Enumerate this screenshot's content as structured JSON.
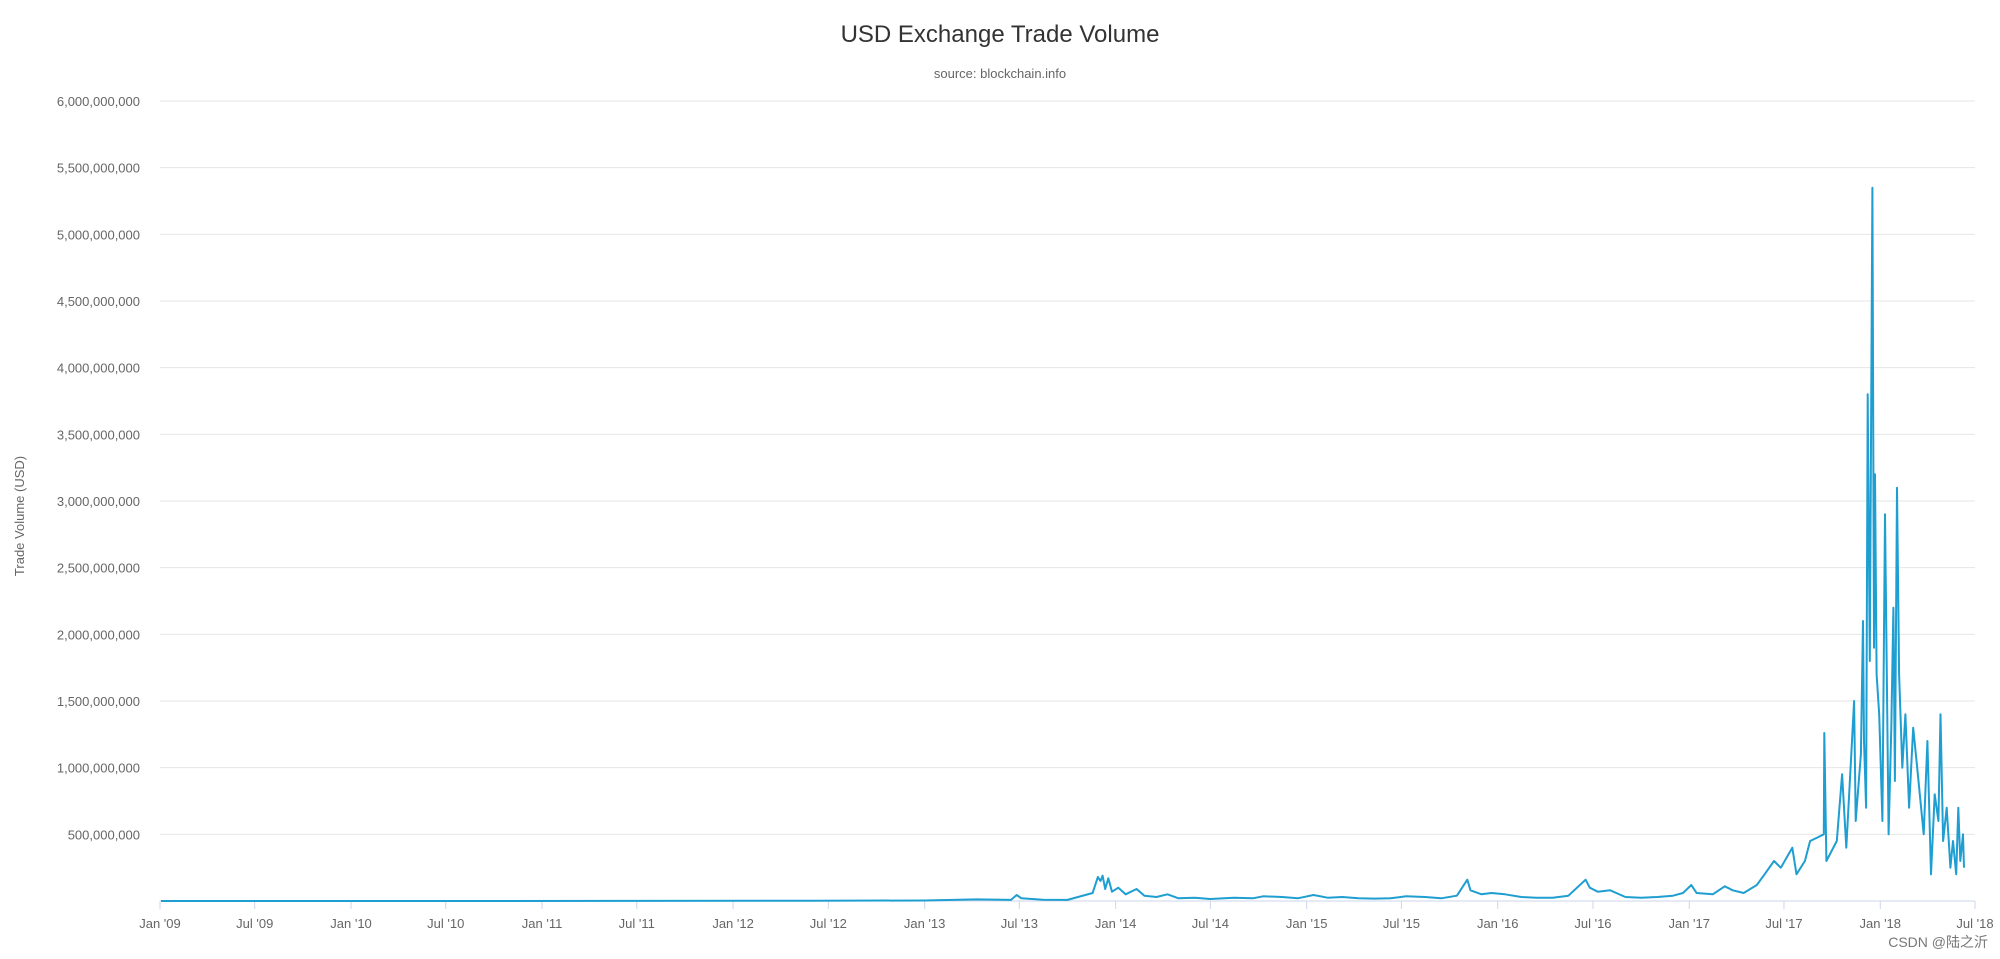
{
  "chart_data": {
    "type": "line",
    "title": "USD Exchange Trade Volume",
    "subtitle": "source: blockchain.info",
    "ylabel": "Trade Volume (USD)",
    "xlabel": "",
    "ylim": [
      0,
      6000000000
    ],
    "yticks": [
      {
        "value": 500000000,
        "label": "500,000,000"
      },
      {
        "value": 1000000000,
        "label": "1,000,000,000"
      },
      {
        "value": 1500000000,
        "label": "1,500,000,000"
      },
      {
        "value": 2000000000,
        "label": "2,000,000,000"
      },
      {
        "value": 2500000000,
        "label": "2,500,000,000"
      },
      {
        "value": 3000000000,
        "label": "3,000,000,000"
      },
      {
        "value": 3500000000,
        "label": "3,500,000,000"
      },
      {
        "value": 4000000000,
        "label": "4,000,000,000"
      },
      {
        "value": 4500000000,
        "label": "4,500,000,000"
      },
      {
        "value": 5000000000,
        "label": "5,000,000,000"
      },
      {
        "value": 5500000000,
        "label": "5,500,000,000"
      },
      {
        "value": 6000000000,
        "label": "6,000,000,000"
      }
    ],
    "xlim": [
      "2009-01-01",
      "2018-07-01"
    ],
    "xticks": [
      {
        "date": "2009-01-01",
        "label": "Jan '09"
      },
      {
        "date": "2009-07-01",
        "label": "Jul '09"
      },
      {
        "date": "2010-01-01",
        "label": "Jan '10"
      },
      {
        "date": "2010-07-01",
        "label": "Jul '10"
      },
      {
        "date": "2011-01-01",
        "label": "Jan '11"
      },
      {
        "date": "2011-07-01",
        "label": "Jul '11"
      },
      {
        "date": "2012-01-01",
        "label": "Jan '12"
      },
      {
        "date": "2012-07-01",
        "label": "Jul '12"
      },
      {
        "date": "2013-01-01",
        "label": "Jan '13"
      },
      {
        "date": "2013-07-01",
        "label": "Jul '13"
      },
      {
        "date": "2014-01-01",
        "label": "Jan '14"
      },
      {
        "date": "2014-07-01",
        "label": "Jul '14"
      },
      {
        "date": "2015-01-01",
        "label": "Jan '15"
      },
      {
        "date": "2015-07-01",
        "label": "Jul '15"
      },
      {
        "date": "2016-01-01",
        "label": "Jan '16"
      },
      {
        "date": "2016-07-01",
        "label": "Jul '16"
      },
      {
        "date": "2017-01-01",
        "label": "Jan '17"
      },
      {
        "date": "2017-07-01",
        "label": "Jul '17"
      },
      {
        "date": "2018-01-01",
        "label": "Jan '18"
      },
      {
        "date": "2018-07-01",
        "label": "Jul '18"
      }
    ],
    "grid": true,
    "legend": "none",
    "series": [
      {
        "color": "#1f9ed1",
        "points": [
          [
            "2009-01-03",
            0
          ],
          [
            "2010-07-18",
            0
          ],
          [
            "2011-06-01",
            1000000
          ],
          [
            "2012-06-01",
            2000000
          ],
          [
            "2013-01-01",
            4000000
          ],
          [
            "2013-04-10",
            12000000
          ],
          [
            "2013-06-15",
            8000000
          ],
          [
            "2013-06-26",
            45000000
          ],
          [
            "2013-07-05",
            20000000
          ],
          [
            "2013-08-15",
            10000000
          ],
          [
            "2013-10-01",
            8000000
          ],
          [
            "2013-11-18",
            60000000
          ],
          [
            "2013-11-28",
            180000000
          ],
          [
            "2013-12-03",
            150000000
          ],
          [
            "2013-12-07",
            190000000
          ],
          [
            "2013-12-12",
            90000000
          ],
          [
            "2013-12-18",
            170000000
          ],
          [
            "2013-12-25",
            70000000
          ],
          [
            "2014-01-06",
            100000000
          ],
          [
            "2014-01-20",
            50000000
          ],
          [
            "2014-02-10",
            90000000
          ],
          [
            "2014-02-25",
            40000000
          ],
          [
            "2014-03-20",
            30000000
          ],
          [
            "2014-04-10",
            50000000
          ],
          [
            "2014-05-01",
            20000000
          ],
          [
            "2014-06-01",
            25000000
          ],
          [
            "2014-07-01",
            15000000
          ],
          [
            "2014-08-15",
            25000000
          ],
          [
            "2014-09-20",
            20000000
          ],
          [
            "2014-10-10",
            35000000
          ],
          [
            "2014-11-15",
            30000000
          ],
          [
            "2014-12-15",
            20000000
          ],
          [
            "2015-01-14",
            45000000
          ],
          [
            "2015-02-10",
            25000000
          ],
          [
            "2015-03-10",
            30000000
          ],
          [
            "2015-04-10",
            20000000
          ],
          [
            "2015-05-10",
            18000000
          ],
          [
            "2015-06-10",
            20000000
          ],
          [
            "2015-07-10",
            35000000
          ],
          [
            "2015-08-15",
            30000000
          ],
          [
            "2015-09-15",
            20000000
          ],
          [
            "2015-10-15",
            40000000
          ],
          [
            "2015-11-04",
            160000000
          ],
          [
            "2015-11-10",
            80000000
          ],
          [
            "2015-12-01",
            50000000
          ],
          [
            "2015-12-20",
            60000000
          ],
          [
            "2016-01-15",
            50000000
          ],
          [
            "2016-02-15",
            30000000
          ],
          [
            "2016-03-15",
            25000000
          ],
          [
            "2016-04-15",
            25000000
          ],
          [
            "2016-05-15",
            40000000
          ],
          [
            "2016-06-17",
            160000000
          ],
          [
            "2016-06-25",
            100000000
          ],
          [
            "2016-07-10",
            70000000
          ],
          [
            "2016-08-03",
            80000000
          ],
          [
            "2016-09-01",
            30000000
          ],
          [
            "2016-10-01",
            25000000
          ],
          [
            "2016-11-01",
            30000000
          ],
          [
            "2016-12-01",
            40000000
          ],
          [
            "2016-12-20",
            60000000
          ],
          [
            "2017-01-05",
            120000000
          ],
          [
            "2017-01-15",
            60000000
          ],
          [
            "2017-02-15",
            50000000
          ],
          [
            "2017-03-10",
            110000000
          ],
          [
            "2017-03-25",
            80000000
          ],
          [
            "2017-04-15",
            60000000
          ],
          [
            "2017-05-10",
            120000000
          ],
          [
            "2017-05-25",
            200000000
          ],
          [
            "2017-06-12",
            300000000
          ],
          [
            "2017-06-25",
            250000000
          ],
          [
            "2017-07-17",
            400000000
          ],
          [
            "2017-07-25",
            200000000
          ],
          [
            "2017-08-10",
            300000000
          ],
          [
            "2017-08-20",
            450000000
          ],
          [
            "2017-09-05",
            480000000
          ],
          [
            "2017-09-15",
            500000000
          ],
          [
            "2017-09-16",
            1260000000
          ],
          [
            "2017-09-20",
            300000000
          ],
          [
            "2017-10-10",
            450000000
          ],
          [
            "2017-10-20",
            950000000
          ],
          [
            "2017-10-28",
            400000000
          ],
          [
            "2017-11-08",
            1200000000
          ],
          [
            "2017-11-12",
            1500000000
          ],
          [
            "2017-11-15",
            600000000
          ],
          [
            "2017-11-25",
            1100000000
          ],
          [
            "2017-11-29",
            2100000000
          ],
          [
            "2017-12-01",
            1200000000
          ],
          [
            "2017-12-05",
            700000000
          ],
          [
            "2017-12-08",
            3800000000
          ],
          [
            "2017-12-12",
            1800000000
          ],
          [
            "2017-12-17",
            5350000000
          ],
          [
            "2017-12-20",
            1900000000
          ],
          [
            "2017-12-22",
            3200000000
          ],
          [
            "2017-12-25",
            1700000000
          ],
          [
            "2017-12-30",
            1400000000
          ],
          [
            "2018-01-05",
            600000000
          ],
          [
            "2018-01-10",
            2900000000
          ],
          [
            "2018-01-14",
            1500000000
          ],
          [
            "2018-01-17",
            500000000
          ],
          [
            "2018-01-22",
            1300000000
          ],
          [
            "2018-01-26",
            2200000000
          ],
          [
            "2018-01-29",
            900000000
          ],
          [
            "2018-02-02",
            3100000000
          ],
          [
            "2018-02-06",
            1700000000
          ],
          [
            "2018-02-12",
            1000000000
          ],
          [
            "2018-02-18",
            1400000000
          ],
          [
            "2018-02-25",
            700000000
          ],
          [
            "2018-03-05",
            1300000000
          ],
          [
            "2018-03-15",
            900000000
          ],
          [
            "2018-03-25",
            500000000
          ],
          [
            "2018-04-01",
            1200000000
          ],
          [
            "2018-04-08",
            200000000
          ],
          [
            "2018-04-15",
            800000000
          ],
          [
            "2018-04-22",
            600000000
          ],
          [
            "2018-04-26",
            1400000000
          ],
          [
            "2018-05-01",
            450000000
          ],
          [
            "2018-05-08",
            700000000
          ],
          [
            "2018-05-15",
            250000000
          ],
          [
            "2018-05-20",
            450000000
          ],
          [
            "2018-05-26",
            200000000
          ],
          [
            "2018-05-30",
            700000000
          ],
          [
            "2018-06-03",
            300000000
          ],
          [
            "2018-06-08",
            500000000
          ],
          [
            "2018-06-10",
            250000000
          ]
        ]
      }
    ]
  },
  "watermark": "CSDN @陆之沂"
}
